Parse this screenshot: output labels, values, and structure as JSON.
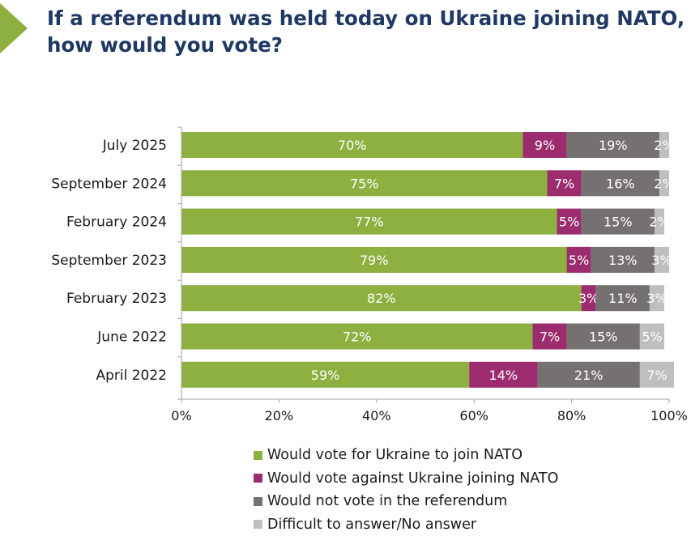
{
  "title": {
    "line1": "If a referendum was held today on Ukraine joining NATO,",
    "line2": "how would you vote?"
  },
  "colors": {
    "accent": "#8db040",
    "title": "#1f3864",
    "for": "#8db040",
    "against": "#9b2c6e",
    "not_vote": "#767171",
    "difficult": "#bfbfbf",
    "axis": "#a6a6a6"
  },
  "chart_data": {
    "type": "bar",
    "orientation": "horizontal",
    "stacked": true,
    "categories": [
      "July 2025",
      "September 2024",
      "February 2024",
      "September 2023",
      "February 2023",
      "June 2022",
      "April 2022"
    ],
    "series": [
      {
        "name": "Would vote for Ukraine to join NATO",
        "color": "#8db040",
        "values": [
          70,
          75,
          77,
          79,
          82,
          72,
          59
        ]
      },
      {
        "name": "Would vote against Ukraine joining NATO",
        "color": "#9b2c6e",
        "values": [
          9,
          7,
          5,
          5,
          3,
          7,
          14
        ]
      },
      {
        "name": "Would not vote in the referendum",
        "color": "#767171",
        "values": [
          19,
          16,
          15,
          13,
          11,
          15,
          21
        ]
      },
      {
        "name": "Difficult to answer/No answer",
        "color": "#bfbfbf",
        "values": [
          2,
          2,
          2,
          3,
          3,
          5,
          7
        ]
      }
    ],
    "value_suffix": "%",
    "xlim": [
      0,
      100
    ],
    "xticks": [
      0,
      20,
      40,
      60,
      80,
      100
    ],
    "xtick_labels": [
      "0%",
      "20%",
      "40%",
      "60%",
      "80%",
      "100%"
    ],
    "grid": false,
    "legend_position": "bottom"
  }
}
